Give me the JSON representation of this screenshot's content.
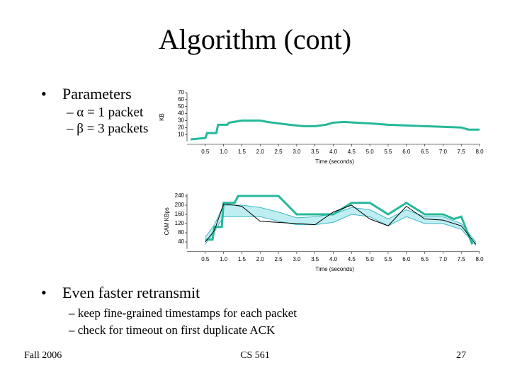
{
  "slide": {
    "title": "Algorithm (cont)",
    "bullets": [
      {
        "text": "Parameters",
        "subs": [
          "– α = 1 packet",
          "– β = 3 packets"
        ]
      },
      {
        "text": "Even faster retransmit",
        "subs": [
          "– keep fine-grained timestamps for each packet",
          "– check for timeout on first duplicate ACK"
        ]
      }
    ],
    "footer": {
      "left": "Fall 2006",
      "center": "CS 561",
      "right": "27"
    }
  },
  "chart_data": [
    {
      "type": "line",
      "ylabel": "KB",
      "xlabel": "Time (seconds)",
      "xlim": [
        0,
        8
      ],
      "ylim": [
        0,
        70
      ],
      "yticks": [
        10,
        20,
        30,
        40,
        50,
        60,
        70
      ],
      "xticks": [
        0.5,
        {
          "value": 1,
          "label": "1.0"
        },
        1.5,
        {
          "value": 2,
          "label": "2.0"
        },
        2.5,
        {
          "value": 3,
          "label": "3.0"
        },
        3.5,
        {
          "value": 4,
          "label": "4.0"
        },
        4.5,
        {
          "value": 5,
          "label": "5.0"
        },
        5.5,
        {
          "value": 6,
          "label": "6.0"
        },
        6.5,
        {
          "value": 7,
          "label": "7.0"
        },
        7.5,
        {
          "value": 8,
          "label": "8.0"
        }
      ],
      "series": [
        {
          "color": "#26b89a",
          "width": 3,
          "x": [
            0.1,
            0.5,
            0.55,
            0.8,
            0.85,
            1.1,
            1.15,
            1.5,
            2.0,
            2.2,
            2.5,
            2.8,
            3.2,
            3.5,
            3.8,
            4.0,
            4.3,
            4.6,
            5.0,
            5.5,
            6.0,
            6.5,
            7.0,
            7.5,
            7.7,
            8.0
          ],
          "values": [
            3,
            5,
            12,
            12,
            24,
            24,
            27,
            30,
            30,
            28,
            26,
            24,
            22,
            22,
            24,
            27,
            28,
            27,
            26,
            24,
            23,
            22,
            21,
            20,
            17,
            17
          ]
        }
      ]
    },
    {
      "type": "line",
      "ylabel": "CAM KBps",
      "xlabel": "Time (seconds)",
      "xlim": [
        0,
        8
      ],
      "ylim": [
        10,
        250
      ],
      "yticks": [
        40,
        80,
        120,
        160,
        200,
        240
      ],
      "xticks": [
        0.5,
        {
          "value": 1,
          "label": "1.0"
        },
        1.5,
        {
          "value": 2,
          "label": "2.0"
        },
        2.5,
        {
          "value": 3,
          "label": "3.0"
        },
        3.5,
        {
          "value": 4,
          "label": "4.0"
        },
        4.5,
        {
          "value": 5,
          "label": "5.0"
        },
        5.5,
        {
          "value": 6,
          "label": "6.0"
        },
        6.5,
        {
          "value": 7,
          "label": "7.0"
        },
        7.5,
        {
          "value": 8,
          "label": "8.0"
        }
      ],
      "band": {
        "color": "#bfeef2",
        "line_color": "#3fb7c4",
        "x": [
          0.5,
          0.75,
          1.0,
          1.5,
          2.0,
          2.5,
          3.0,
          3.5,
          4.0,
          4.5,
          5.0,
          5.5,
          6.0,
          6.5,
          7.0,
          7.5,
          7.9
        ],
        "upper": [
          60,
          115,
          200,
          200,
          190,
          170,
          145,
          150,
          160,
          190,
          180,
          140,
          180,
          150,
          150,
          120,
          40
        ],
        "lower": [
          30,
          85,
          150,
          150,
          150,
          130,
          115,
          115,
          125,
          160,
          150,
          110,
          150,
          120,
          120,
          95,
          25
        ]
      },
      "series": [
        {
          "color": "#26b89a",
          "width": 3,
          "x": [
            0.5,
            0.7,
            0.75,
            0.95,
            1.0,
            1.3,
            1.4,
            2.0,
            2.5,
            3.0,
            4.0,
            4.5,
            5.0,
            5.5,
            6.0,
            6.5,
            7.0,
            7.3,
            7.5,
            7.8
          ],
          "values": [
            50,
            50,
            105,
            105,
            210,
            210,
            240,
            240,
            240,
            160,
            160,
            210,
            210,
            160,
            210,
            160,
            160,
            140,
            150,
            30
          ]
        },
        {
          "color": "#000000",
          "width": 1,
          "x": [
            0.5,
            0.75,
            1.0,
            1.3,
            1.5,
            2.0,
            2.5,
            3.0,
            3.5,
            4.0,
            4.5,
            5.0,
            5.5,
            6.0,
            6.5,
            7.0,
            7.5,
            7.9
          ],
          "values": [
            40,
            90,
            205,
            200,
            195,
            130,
            125,
            120,
            115,
            170,
            200,
            140,
            110,
            195,
            140,
            135,
            110,
            30
          ]
        }
      ]
    }
  ]
}
